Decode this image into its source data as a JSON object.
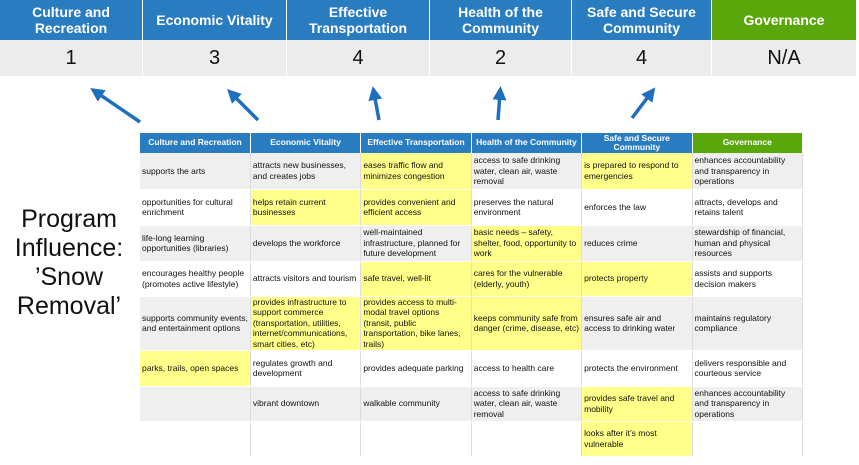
{
  "summary": {
    "headers": [
      "Culture and Recreation",
      "Economic Vitality",
      "Effective Transportation",
      "Health of the Community",
      "Safe and Secure Community",
      "Governance"
    ],
    "scores": [
      "1",
      "3",
      "4",
      "2",
      "4",
      "N/A"
    ]
  },
  "program_label": "Program Influence: ’Snow Removal’",
  "colors": {
    "header_blue": "#2a7cc0",
    "governance_green": "#5aa70c",
    "highlight_yellow": "#ffff8a",
    "arrow_blue": "#1f6fbf"
  },
  "table": {
    "headers": [
      "Culture and Recreation",
      "Economic Vitality",
      "Effective Transportation",
      "Health of the Community",
      "Safe and Secure Community",
      "Governance"
    ],
    "rows": [
      [
        {
          "t": "supports the arts"
        },
        {
          "t": "attracts new businesses, and creates jobs"
        },
        {
          "t": "eases traffic flow and minimizes congestion",
          "hl": true
        },
        {
          "t": "access to safe drinking water, clean air, waste removal"
        },
        {
          "t": "is prepared to respond to emergencies",
          "hl": true
        },
        {
          "t": "enhances accountability and transparency in operations"
        }
      ],
      [
        {
          "t": "opportunities for cultural enrichment"
        },
        {
          "t": "helps retain current businesses",
          "hl": true
        },
        {
          "t": "provides convenient and efficient access",
          "hl": true
        },
        {
          "t": "preserves the natural environment"
        },
        {
          "t": "enforces the law"
        },
        {
          "t": "attracts, develops and retains talent"
        }
      ],
      [
        {
          "t": "life-long learning opportunities (libraries)"
        },
        {
          "t": "develops the workforce"
        },
        {
          "t": "well-maintained infrastructure, planned for future development"
        },
        {
          "t": "basic needs – safety, shelter, food, opportunity to work",
          "hl": true
        },
        {
          "t": "reduces crime"
        },
        {
          "t": "stewardship of financial, human and physical resources"
        }
      ],
      [
        {
          "t": "encourages healthy people (promotes active lifestyle)"
        },
        {
          "t": "attracts visitors and tourism"
        },
        {
          "t": "safe travel, well-lit",
          "hl": true
        },
        {
          "t": "cares for the vulnerable (elderly, youth)",
          "hl": true
        },
        {
          "t": "protects property",
          "hl": true
        },
        {
          "t": "assists and supports decision makers"
        }
      ],
      [
        {
          "t": "supports community events, and entertainment options"
        },
        {
          "t": "provides infrastructure to support commerce (transportation, utilities, internet/communications, smart cities, etc)",
          "hl": true
        },
        {
          "t": "provides access to multi-modal travel options (transit, public transportation, bike lanes, trails)",
          "hl": true
        },
        {
          "t": "keeps community safe from danger (crime, disease, etc)",
          "hl": true
        },
        {
          "t": "ensures safe air and access to drinking water"
        },
        {
          "t": "maintains regulatory compliance"
        }
      ],
      [
        {
          "t": "parks, trails, open spaces",
          "hl": true
        },
        {
          "t": "regulates growth and development"
        },
        {
          "t": "provides adequate parking"
        },
        {
          "t": "access to health care"
        },
        {
          "t": "protects the environment"
        },
        {
          "t": "delivers responsible and courteous service"
        }
      ],
      [
        {
          "t": ""
        },
        {
          "t": "vibrant downtown"
        },
        {
          "t": "walkable community"
        },
        {
          "t": "access to safe drinking water, clean air, waste removal"
        },
        {
          "t": "provides safe travel and mobility",
          "hl": true
        },
        {
          "t": "enhances accountability and transparency in operations"
        }
      ],
      [
        {
          "t": ""
        },
        {
          "t": ""
        },
        {
          "t": ""
        },
        {
          "t": ""
        },
        {
          "t": "looks after it’s most vulnerable",
          "hl": true
        },
        {
          "t": ""
        }
      ]
    ]
  }
}
